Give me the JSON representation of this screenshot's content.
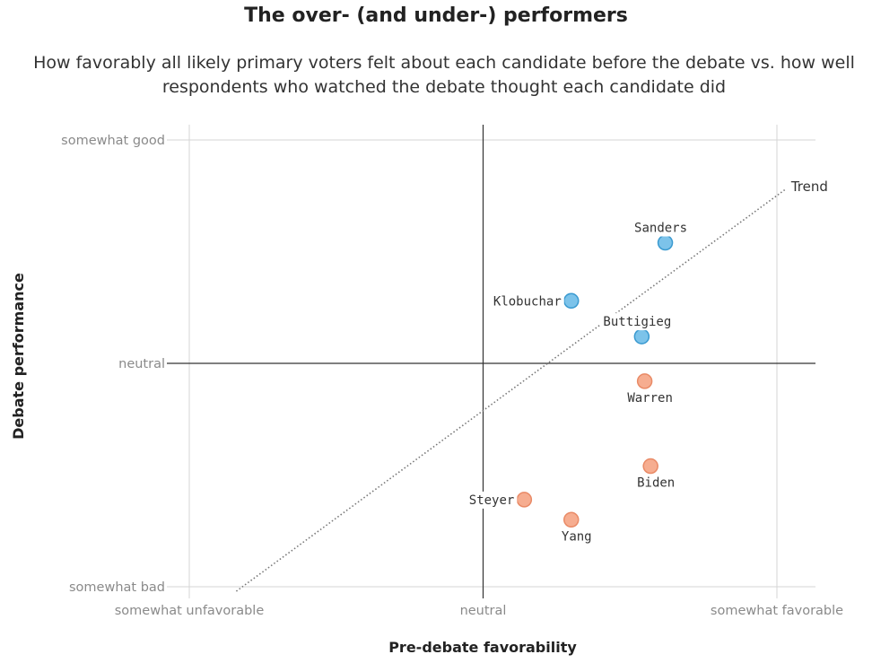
{
  "chart_data": {
    "type": "scatter",
    "title": "The over- (and under-) performers",
    "subtitle": "How favorably all likely primary voters felt about each candidate before the debate vs. how well respondents who watched the debate thought each candidate did",
    "xlabel": "Pre-debate favorability",
    "ylabel": "Debate performance",
    "xlim": [
      -1,
      1.13
    ],
    "ylim": [
      -1,
      1
    ],
    "x_ticks": [
      {
        "value": -1,
        "label": "somewhat unfavorable"
      },
      {
        "value": 0,
        "label": "neutral"
      },
      {
        "value": 1,
        "label": "somewhat favorable"
      }
    ],
    "y_ticks": [
      {
        "value": 1,
        "label": "somewhat good"
      },
      {
        "value": 0,
        "label": "neutral"
      },
      {
        "value": -1,
        "label": "somewhat bad"
      }
    ],
    "grid": true,
    "colors": {
      "over": "#7cc3ea",
      "over_stroke": "#3a9ad0",
      "under": "#f6ad90",
      "under_stroke": "#e98a66",
      "trend": "#777777",
      "grid": "#d6d6d6",
      "axis": "#333333"
    },
    "trend": {
      "label": "Trend",
      "x": [
        -0.84,
        1.03
      ],
      "y": [
        -1.02,
        0.78
      ]
    },
    "points": [
      {
        "name": "Sanders",
        "x": 0.62,
        "y": 0.54,
        "group": "over"
      },
      {
        "name": "Klobuchar",
        "x": 0.3,
        "y": 0.28,
        "group": "over"
      },
      {
        "name": "Buttigieg",
        "x": 0.54,
        "y": 0.12,
        "group": "over"
      },
      {
        "name": "Warren",
        "x": 0.55,
        "y": -0.08,
        "group": "under"
      },
      {
        "name": "Biden",
        "x": 0.57,
        "y": -0.46,
        "group": "under"
      },
      {
        "name": "Steyer",
        "x": 0.14,
        "y": -0.61,
        "group": "under"
      },
      {
        "name": "Yang",
        "x": 0.3,
        "y": -0.7,
        "group": "under"
      }
    ]
  }
}
